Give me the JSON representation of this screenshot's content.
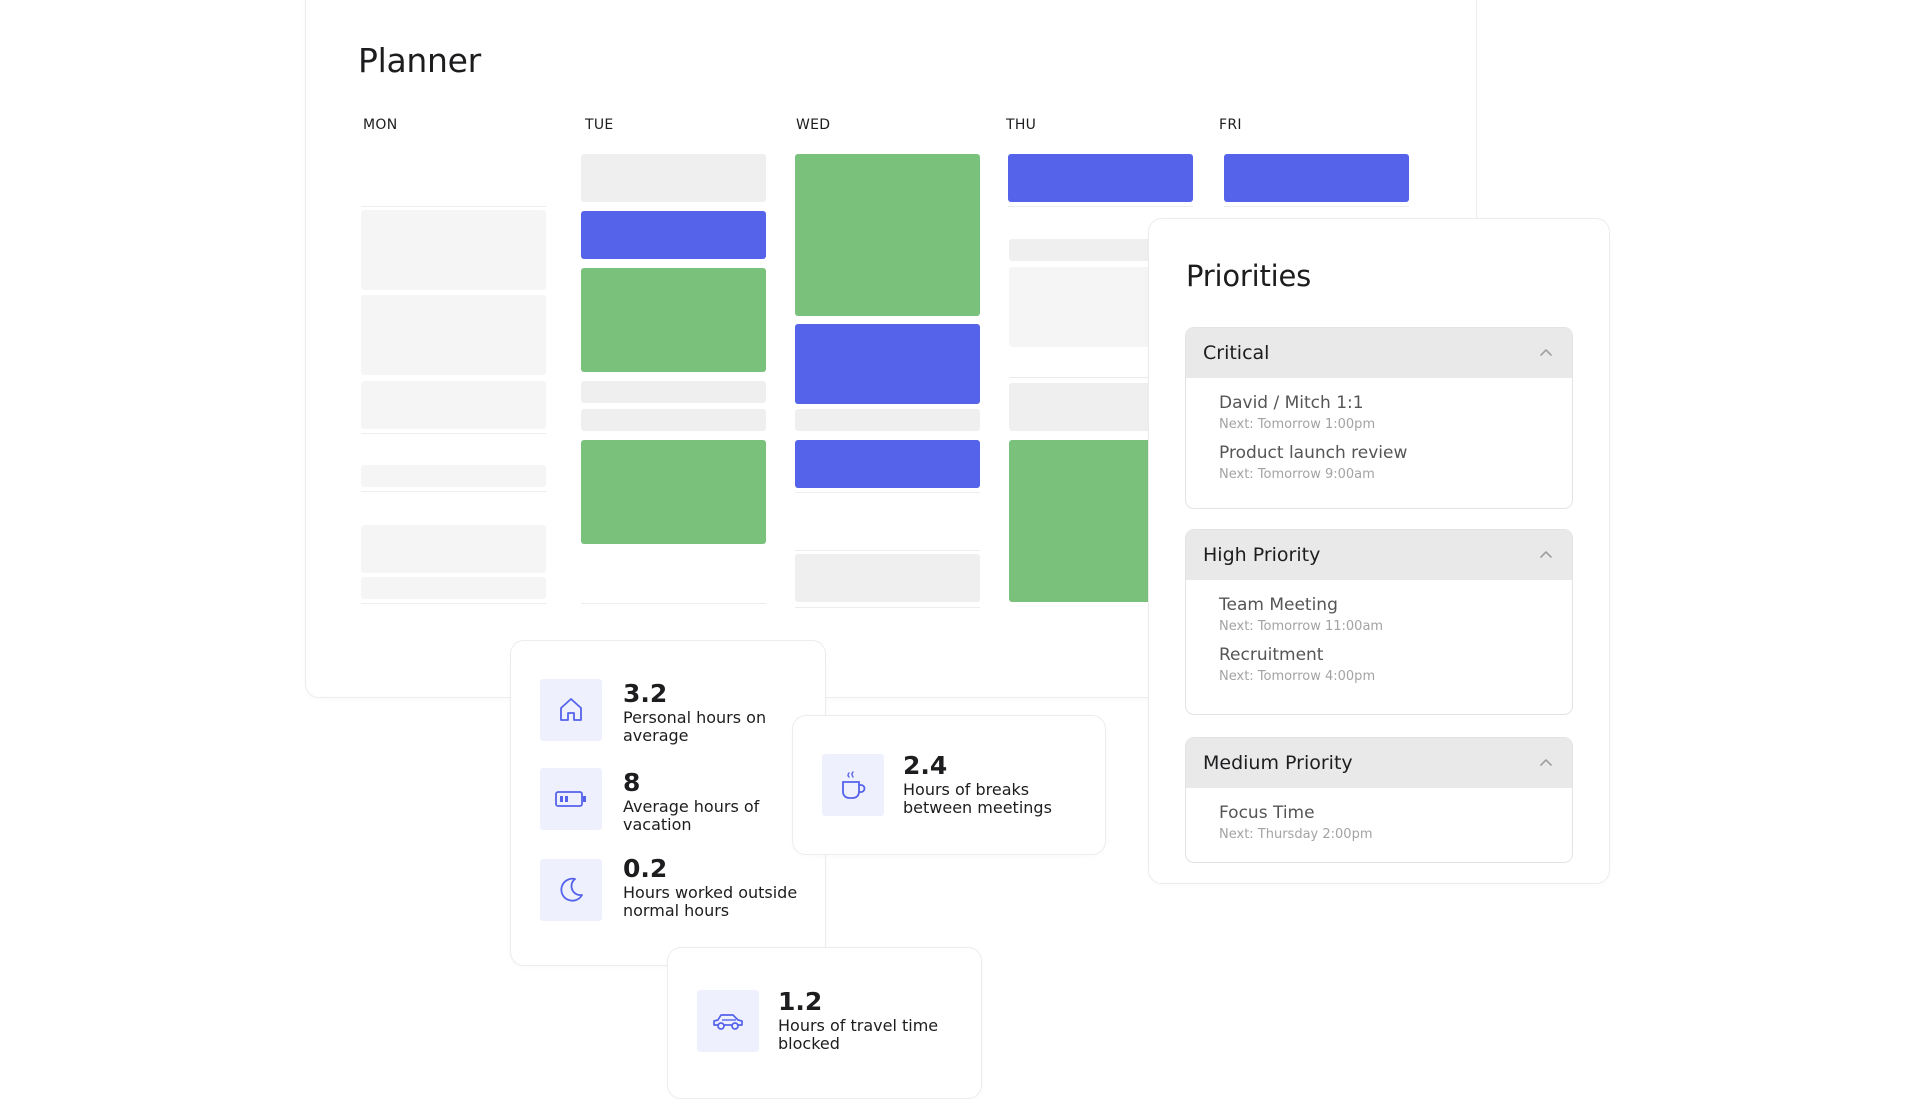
{
  "planner": {
    "title": "Planner",
    "days": [
      "MON",
      "TUE",
      "WED",
      "THU",
      "FRI"
    ]
  },
  "priorities": {
    "title": "Priorities",
    "groups": [
      {
        "label": "Critical",
        "items": [
          {
            "name": "David / Mitch 1:1",
            "next": "Next: Tomorrow 1:00pm"
          },
          {
            "name": "Product launch review",
            "next": "Next: Tomorrow 9:00am"
          }
        ]
      },
      {
        "label": "High Priority",
        "items": [
          {
            "name": "Team Meeting",
            "next": "Next: Tomorrow 11:00am"
          },
          {
            "name": "Recruitment",
            "next": "Next: Tomorrow 4:00pm"
          }
        ]
      },
      {
        "label": "Medium Priority",
        "items": [
          {
            "name": "Focus Time",
            "next": "Next: Thursday 2:00pm"
          }
        ]
      }
    ]
  },
  "stats": {
    "personal": {
      "value": "3.2",
      "label": "Personal hours on average",
      "icon": "home-icon"
    },
    "vacation": {
      "value": "8",
      "label": "Average hours of vacation",
      "icon": "battery-icon"
    },
    "outside": {
      "value": "0.2",
      "label": "Hours worked outside normal hours",
      "icon": "moon-icon"
    },
    "breaks": {
      "value": "2.4",
      "label": "Hours of breaks between meetings",
      "icon": "coffee-cup-icon"
    },
    "travel": {
      "value": "1.2",
      "label": "Hours of travel time blocked",
      "icon": "car-icon"
    }
  },
  "colors": {
    "meeting_blue": "#5563eb",
    "focus_green": "#7ac17b",
    "icon_tint": "#eef0fd",
    "icon_stroke": "#5563eb"
  }
}
